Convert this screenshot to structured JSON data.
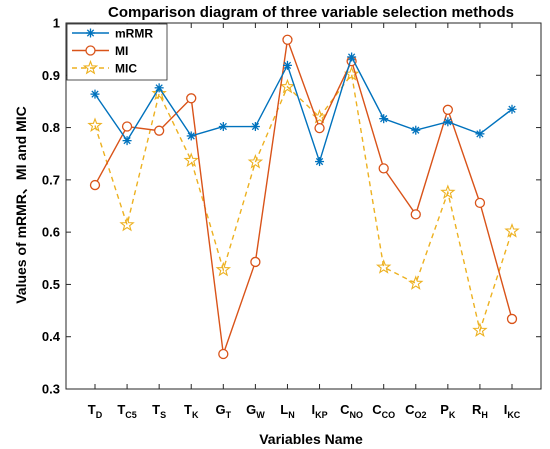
{
  "chart_data": {
    "type": "line",
    "title": "Comparison diagram of three variable selection methods",
    "xlabel": "Variables Name",
    "ylabel": "Values of mRMR、MI and MIC",
    "ylim": [
      0.3,
      1.0
    ],
    "yticks": [
      0.3,
      0.4,
      0.5,
      0.6,
      0.7,
      0.8,
      0.9,
      1
    ],
    "categories": [
      {
        "main": "T",
        "sub": "D"
      },
      {
        "main": "T",
        "sub": "C5"
      },
      {
        "main": "T",
        "sub": "S"
      },
      {
        "main": "T",
        "sub": "K"
      },
      {
        "main": "G",
        "sub": "T"
      },
      {
        "main": "G",
        "sub": "W"
      },
      {
        "main": "L",
        "sub": "N"
      },
      {
        "main": "I",
        "sub": "KP"
      },
      {
        "main": "C",
        "sub": "NO"
      },
      {
        "main": "C",
        "sub": "CO"
      },
      {
        "main": "C",
        "sub": "O2"
      },
      {
        "main": "P",
        "sub": "K"
      },
      {
        "main": "R",
        "sub": "H"
      },
      {
        "main": "I",
        "sub": "KC"
      }
    ],
    "legend_position": "top-left",
    "grid": false,
    "series": [
      {
        "name": "mRMR",
        "color": "#0072BD",
        "marker": "asterisk",
        "style": "solid",
        "values": [
          0.864,
          0.775,
          0.876,
          0.784,
          0.802,
          0.802,
          0.919,
          0.735,
          0.935,
          0.817,
          0.795,
          0.811,
          0.788,
          0.835
        ]
      },
      {
        "name": "MI",
        "color": "#D95319",
        "marker": "circle",
        "style": "solid",
        "values": [
          0.69,
          0.802,
          0.794,
          0.856,
          0.367,
          0.543,
          0.968,
          0.799,
          0.927,
          0.722,
          0.634,
          0.834,
          0.656,
          0.434
        ]
      },
      {
        "name": "MIC",
        "color": "#EDB120",
        "marker": "star",
        "style": "dashed",
        "values": [
          0.804,
          0.614,
          0.865,
          0.737,
          0.528,
          0.734,
          0.878,
          0.82,
          0.902,
          0.533,
          0.502,
          0.676,
          0.412,
          0.602
        ]
      }
    ]
  }
}
